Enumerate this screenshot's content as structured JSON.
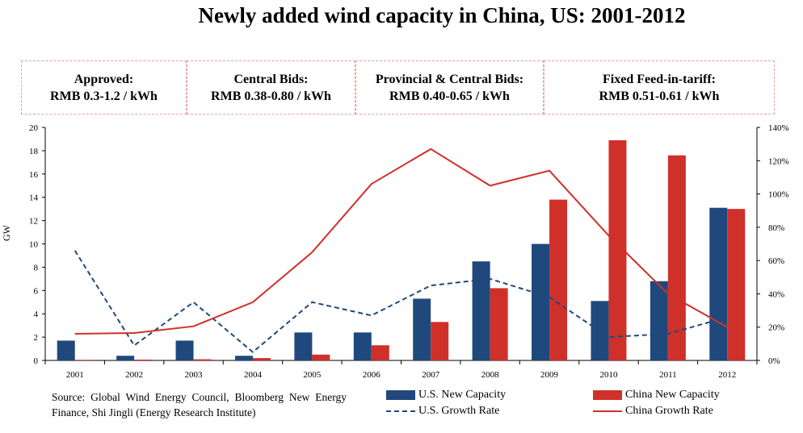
{
  "policy_boxes": [
    {
      "line1": "Approved:",
      "line2": "RMB 0.3-1.2 / kWh"
    },
    {
      "line1": "Central Bids:",
      "line2": "RMB 0.38-0.80 / kWh"
    },
    {
      "line1": "Provincial & Central Bids:",
      "line2": "RMB 0.40-0.65 / kWh"
    },
    {
      "line1": "Fixed Feed-in-tariff:",
      "line2": "RMB 0.51-0.61 / kWh"
    }
  ],
  "source": "Source: Global Wind Energy Council, Bloomberg New Energy Finance, Shi Jingli (Energy Research Institute)",
  "colors": {
    "us": "#1f497d",
    "china": "#d0302a",
    "axis": "#000000",
    "box_border": "#e8a0a0"
  },
  "chart_data": {
    "type": "bar",
    "title": "Newly added wind capacity in China, US: 2001-2012",
    "categories": [
      "2001",
      "2002",
      "2003",
      "2004",
      "2005",
      "2006",
      "2007",
      "2008",
      "2009",
      "2010",
      "2011",
      "2012"
    ],
    "ylabel": "GW",
    "ylim": [
      0,
      20
    ],
    "yticks": [
      "0",
      "2",
      "4",
      "6",
      "8",
      "10",
      "12",
      "14",
      "16",
      "18",
      "20"
    ],
    "y2lim": [
      0,
      140
    ],
    "y2ticks": [
      "0%",
      "20%",
      "40%",
      "60%",
      "80%",
      "100%",
      "120%",
      "140%"
    ],
    "series": [
      {
        "name": "U.S. New Capacity",
        "kind": "bar",
        "axis": "left",
        "values": [
          1.7,
          0.4,
          1.7,
          0.4,
          2.4,
          2.4,
          5.3,
          8.5,
          10.0,
          5.1,
          6.8,
          13.1
        ]
      },
      {
        "name": "China New Capacity",
        "kind": "bar",
        "axis": "left",
        "values": [
          0.05,
          0.07,
          0.1,
          0.2,
          0.5,
          1.3,
          3.3,
          6.2,
          13.8,
          18.9,
          17.6,
          13.0
        ]
      },
      {
        "name": "U.S. Growth Rate",
        "kind": "line",
        "style": "dashed",
        "axis": "right",
        "values": [
          66,
          9,
          35,
          5,
          35,
          27,
          45,
          49,
          38,
          14,
          16,
          26
        ]
      },
      {
        "name": "China Growth Rate",
        "kind": "line",
        "style": "solid",
        "axis": "right",
        "values": [
          16,
          16.5,
          20.5,
          35,
          65,
          106,
          127,
          105,
          114,
          75,
          40,
          20
        ]
      }
    ]
  }
}
